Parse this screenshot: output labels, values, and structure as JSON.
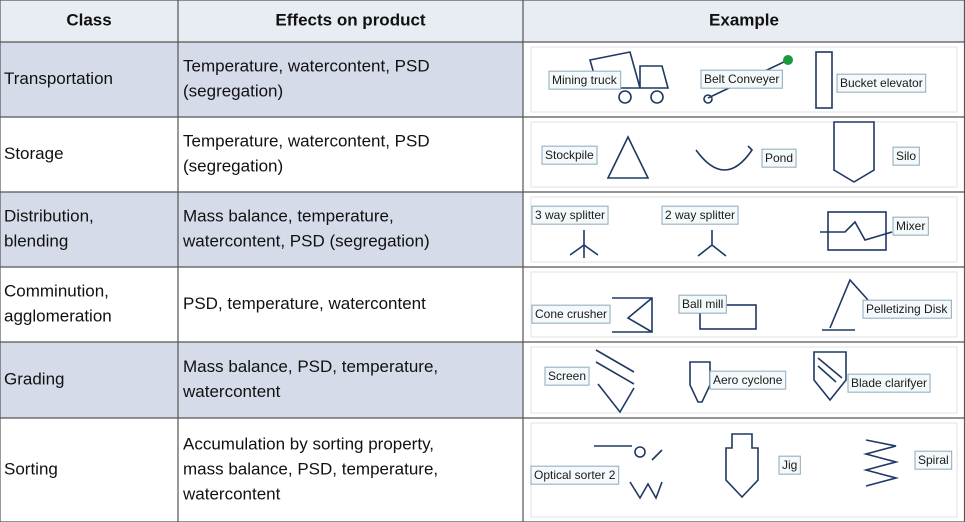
{
  "table": {
    "header": [
      "Class",
      "Effects on product",
      "Example"
    ],
    "rows": [
      {
        "class": [
          "Transportation"
        ],
        "effects": [
          "Temperature, watercontent, PSD",
          "(segregation)"
        ],
        "examples": [
          "Mining truck",
          "Belt Conveyer",
          "Bucket elevator"
        ]
      },
      {
        "class": [
          "Storage"
        ],
        "effects": [
          "Temperature, watercontent, PSD",
          "(segregation)"
        ],
        "examples": [
          "Stockpile",
          "Pond",
          "Silo"
        ]
      },
      {
        "class": [
          "Distribution,",
          "blending"
        ],
        "effects": [
          "Mass balance, temperature,",
          "watercontent, PSD (segregation)"
        ],
        "examples": [
          "3 way splitter",
          "2 way splitter",
          "Mixer"
        ]
      },
      {
        "class": [
          "Comminution,",
          "agglomeration"
        ],
        "effects": [
          "PSD, temperature, watercontent"
        ],
        "examples": [
          "Cone crusher",
          "Ball mill",
          "Pelletizing Disk"
        ]
      },
      {
        "class": [
          "Grading"
        ],
        "effects": [
          "Mass balance, PSD, temperature,",
          "watercontent"
        ],
        "examples": [
          "Screen",
          "Aero cyclone",
          "Blade clarifyer"
        ]
      },
      {
        "class": [
          "Sorting"
        ],
        "effects": [
          "Accumulation by sorting property,",
          "mass balance, PSD, temperature,",
          "watercontent"
        ],
        "examples": [
          "Optical sorter 2",
          "Jig",
          "Spiral"
        ]
      }
    ]
  }
}
